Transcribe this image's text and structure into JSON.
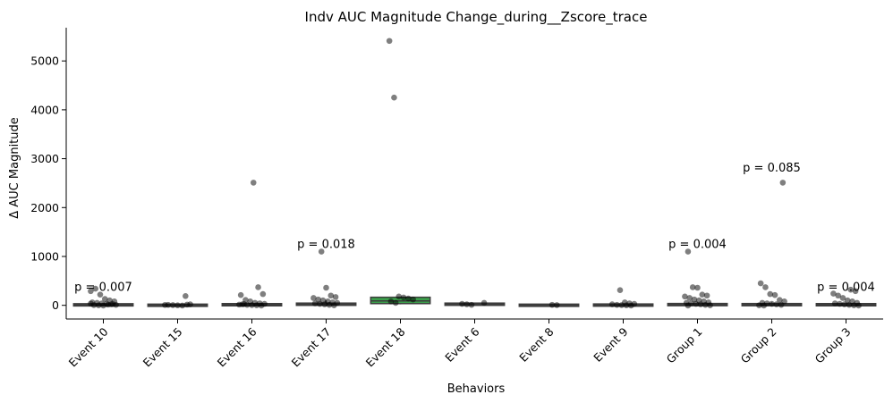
{
  "chart_data": {
    "type": "box",
    "title": "Indv AUC Magnitude Change_during__Zscore_trace",
    "xlabel": "Behaviors",
    "ylabel": "Δ AUC Magnitude",
    "ylim": [
      -280,
      5680
    ],
    "yticks": [
      0,
      1000,
      2000,
      3000,
      4000,
      5000
    ],
    "grid": false,
    "categories": [
      "Event 10",
      "Event 15",
      "Event 16",
      "Event 17",
      "Event 18",
      "Event 6",
      "Event 8",
      "Event 9",
      "Group 1",
      "Group 2",
      "Group 3"
    ],
    "boxes": [
      {
        "q1": 0,
        "median": 8,
        "q3": 20,
        "whisker_low": -15,
        "whisker_high": 45,
        "color": "#444444"
      },
      {
        "q1": -5,
        "median": 2,
        "q3": 8,
        "whisker_low": -15,
        "whisker_high": 15,
        "color": "#444444"
      },
      {
        "q1": 0,
        "median": 10,
        "q3": 25,
        "whisker_low": -20,
        "whisker_high": 50,
        "color": "#444444"
      },
      {
        "q1": 0,
        "median": 12,
        "q3": 45,
        "whisker_low": -20,
        "whisker_high": 100,
        "color": "#444444"
      },
      {
        "q1": 35,
        "median": 90,
        "q3": 165,
        "whisker_low": 20,
        "whisker_high": 175,
        "color": "#3aa04a"
      },
      {
        "q1": 0,
        "median": 20,
        "q3": 45,
        "whisker_low": -5,
        "whisker_high": 55,
        "color": "#444444"
      },
      {
        "q1": -5,
        "median": 2,
        "q3": 8,
        "whisker_low": -10,
        "whisker_high": 12,
        "color": "#444444"
      },
      {
        "q1": -5,
        "median": 3,
        "q3": 15,
        "whisker_low": -20,
        "whisker_high": 30,
        "color": "#444444"
      },
      {
        "q1": 0,
        "median": 10,
        "q3": 30,
        "whisker_low": -20,
        "whisker_high": 60,
        "color": "#444444"
      },
      {
        "q1": 0,
        "median": 8,
        "q3": 28,
        "whisker_low": -20,
        "whisker_high": 60,
        "color": "#444444"
      },
      {
        "q1": 0,
        "median": 8,
        "q3": 25,
        "whisker_low": -20,
        "whisker_high": 50,
        "color": "#444444"
      }
    ],
    "points": [
      [
        290,
        340,
        220,
        130,
        100,
        80,
        60,
        50,
        40,
        30,
        20,
        10,
        5,
        0,
        -5,
        15,
        25,
        35
      ],
      [
        190,
        20,
        10,
        5,
        0,
        -5,
        15,
        8
      ],
      [
        2510,
        370,
        230,
        210,
        110,
        80,
        50,
        40,
        30,
        20,
        10,
        5,
        0,
        -5,
        15,
        25
      ],
      [
        1100,
        360,
        200,
        170,
        150,
        120,
        100,
        80,
        60,
        50,
        40,
        30,
        20,
        10,
        0
      ],
      [
        5410,
        4250,
        180,
        160,
        140,
        120,
        80,
        50
      ],
      [
        50,
        30,
        20,
        10
      ],
      [
        10,
        5
      ],
      [
        310,
        60,
        40,
        30,
        20,
        10,
        5,
        0,
        -5
      ],
      [
        1100,
        370,
        360,
        220,
        200,
        180,
        150,
        120,
        100,
        80,
        60,
        50,
        40,
        30,
        20,
        10,
        0,
        -5
      ],
      [
        2510,
        450,
        370,
        230,
        210,
        110,
        80,
        50,
        40,
        30,
        20,
        10,
        0,
        -5
      ],
      [
        320,
        290,
        240,
        200,
        150,
        100,
        80,
        50,
        40,
        30,
        20,
        10,
        0,
        -5
      ]
    ],
    "point_color": "#000000",
    "annotations": [
      {
        "category": "Event 10",
        "y": 300,
        "text": "p = 0.007"
      },
      {
        "category": "Event 17",
        "y": 1170,
        "text": "p = 0.018"
      },
      {
        "category": "Group 1",
        "y": 1170,
        "text": "p = 0.004"
      },
      {
        "category": "Group 2",
        "y": 2740,
        "text": "p = 0.085"
      },
      {
        "category": "Group 3",
        "y": 300,
        "text": "p = 0.004"
      }
    ]
  }
}
